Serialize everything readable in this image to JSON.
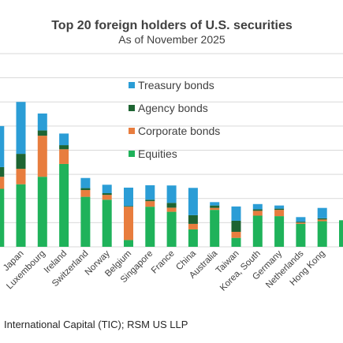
{
  "chart_data": {
    "type": "bar",
    "stacked": true,
    "title": "Top 20 foreign holders of U.S. securities",
    "subtitle": "As of November 2025",
    "source": "International Capital (TIC); RSM US LLP",
    "categories": [
      "Japan",
      "Luxembourg",
      "Ireland",
      "Switzerland",
      "Norway",
      "Belgium",
      "Singapore",
      "France",
      "China",
      "Australia",
      "Taiwan",
      "Korea, South",
      "Germany",
      "Netherlands",
      "Hong Kong"
    ],
    "series": [
      {
        "name": "Equities",
        "color": "#1fb25a",
        "values": [
          2590,
          2900,
          3430,
          2070,
          1950,
          280,
          1660,
          1450,
          720,
          1530,
          370,
          1290,
          1270,
          950,
          1060
        ]
      },
      {
        "name": "Corporate bonds",
        "color": "#e87d3e",
        "values": [
          640,
          1700,
          610,
          280,
          200,
          1380,
          230,
          170,
          230,
          80,
          250,
          200,
          260,
          50,
          70
        ]
      },
      {
        "name": "Agency bonds",
        "color": "#1e6432",
        "values": [
          620,
          220,
          170,
          80,
          70,
          30,
          60,
          200,
          360,
          100,
          460,
          60,
          50,
          40,
          50
        ]
      },
      {
        "name": "Treasury bonds",
        "color": "#2b9dd6",
        "values": [
          2150,
          700,
          480,
          420,
          350,
          760,
          600,
          720,
          1130,
          140,
          590,
          220,
          130,
          190,
          430
        ]
      }
    ],
    "legend": {
      "position": "top-right",
      "order": [
        "Treasury bonds",
        "Agency bonds",
        "Corporate bonds",
        "Equities"
      ]
    },
    "ylim": [
      0,
      8000
    ],
    "grid": true
  }
}
